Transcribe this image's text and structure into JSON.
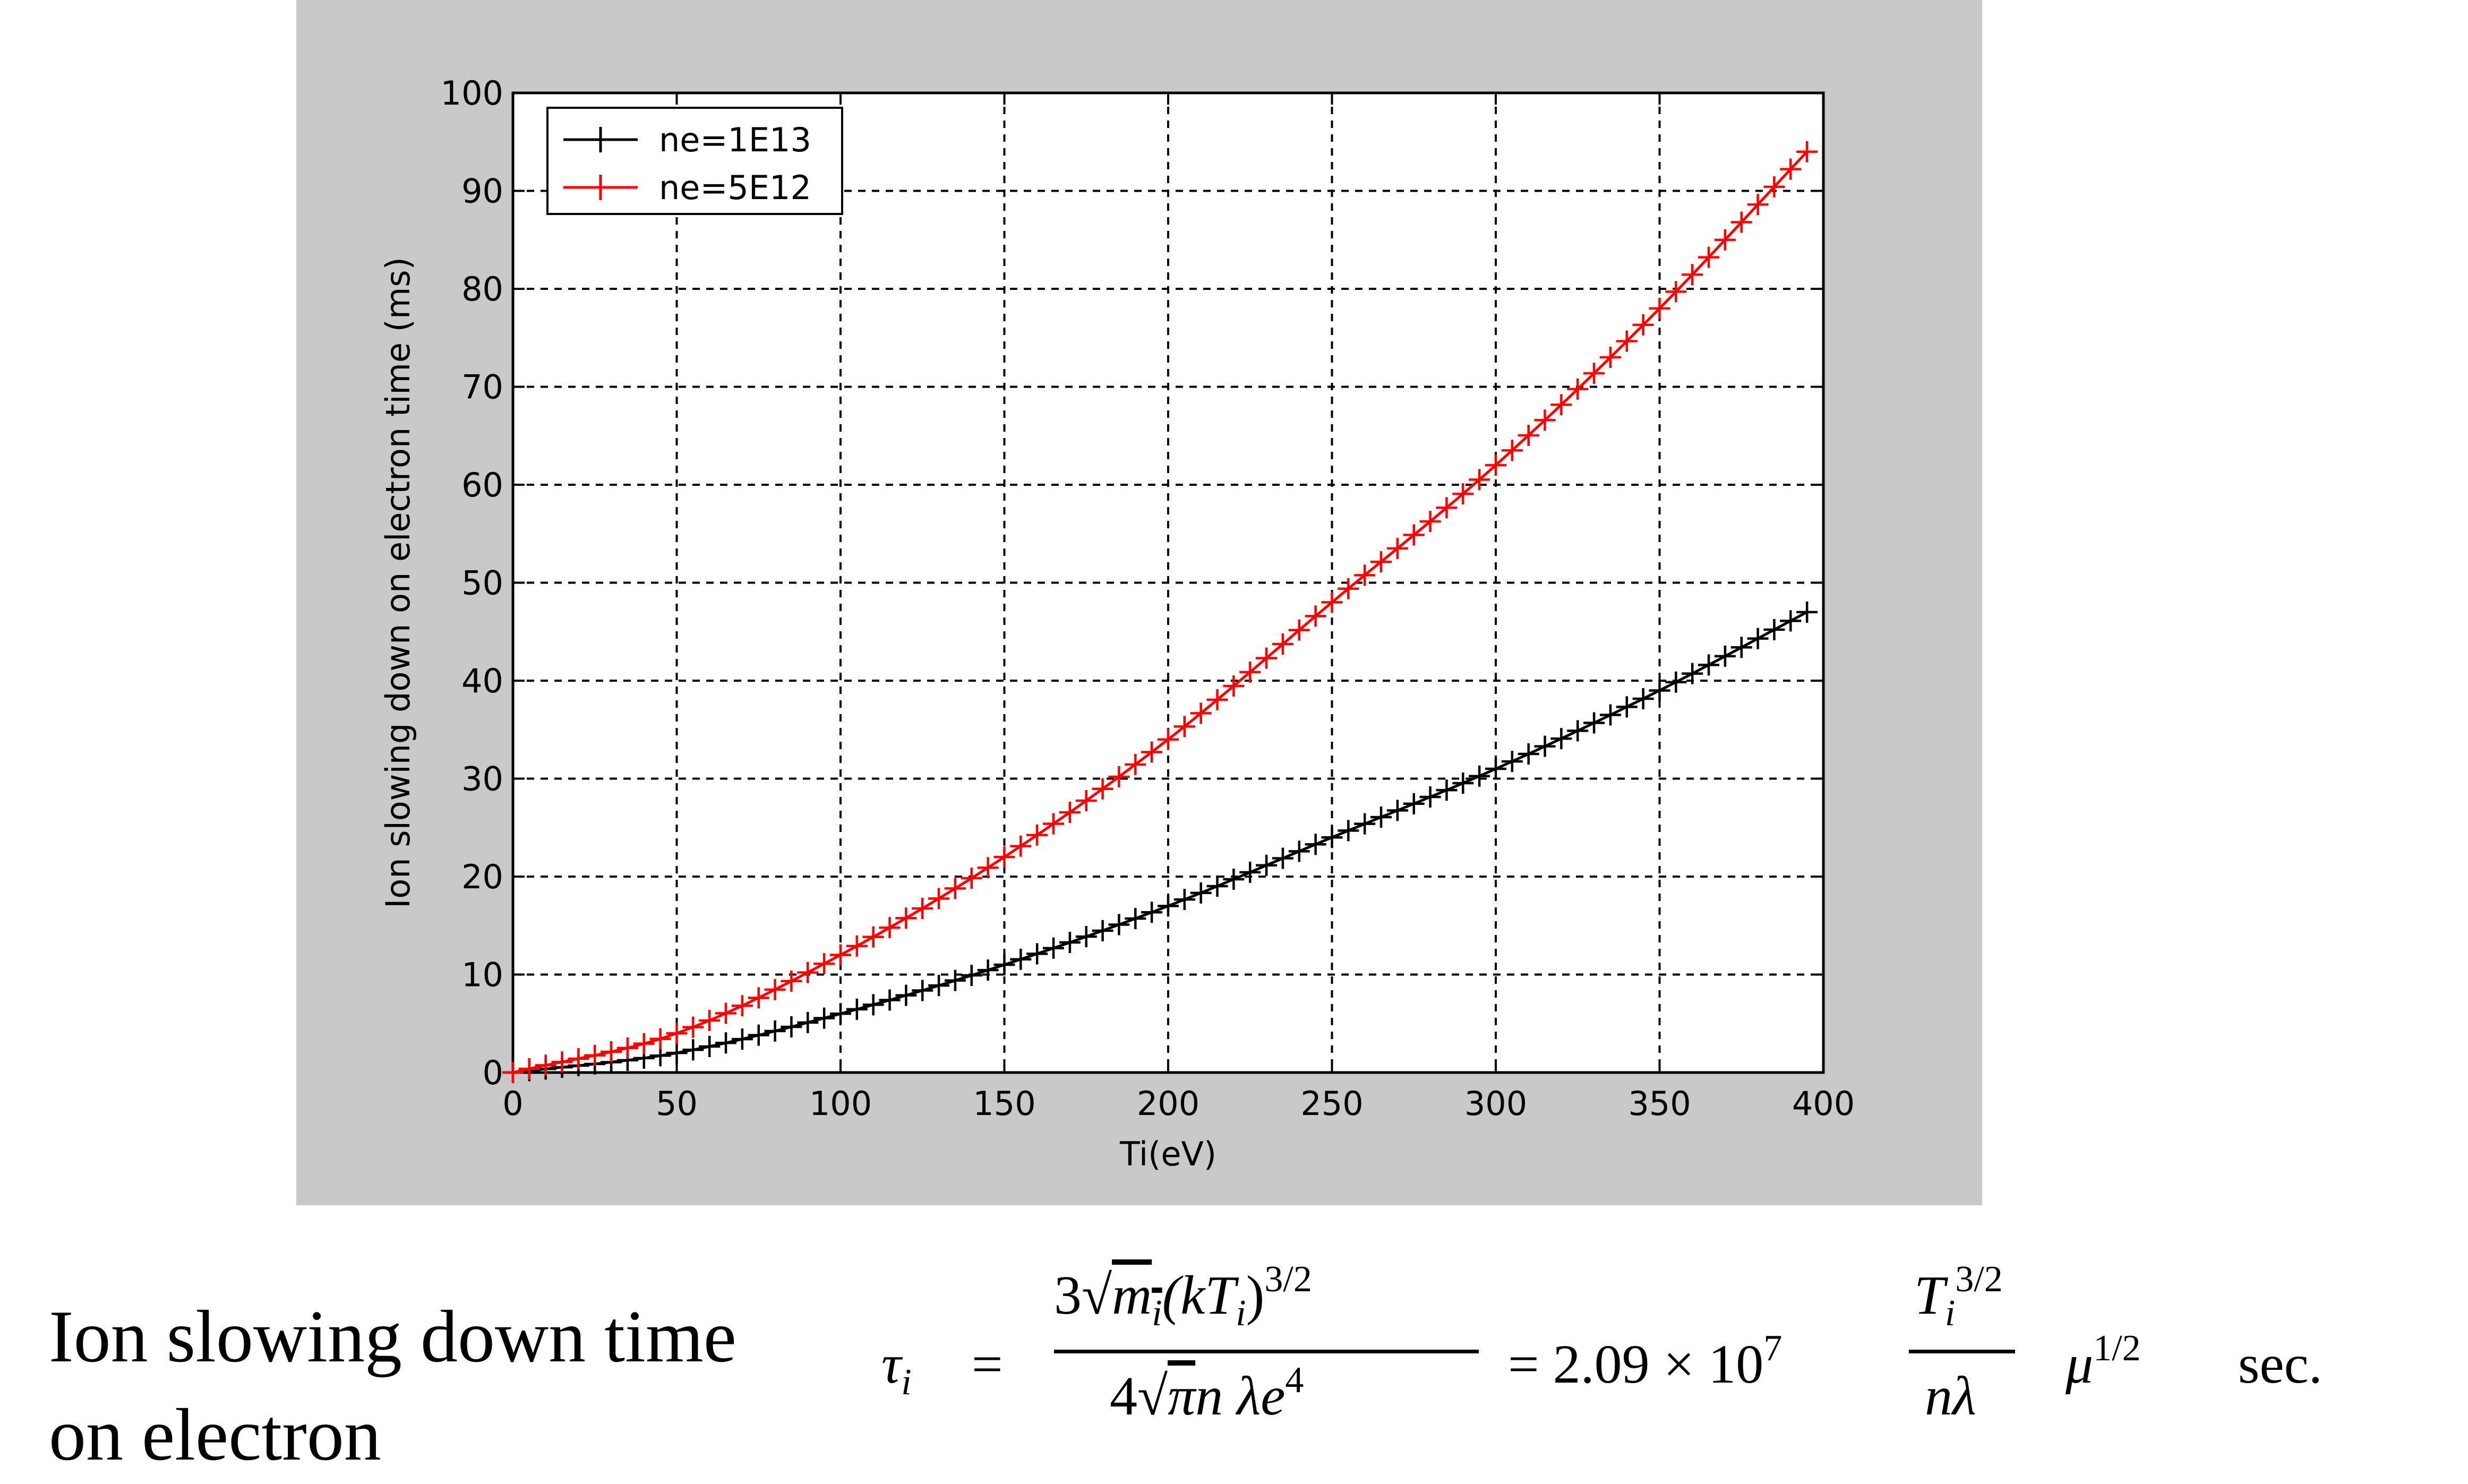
{
  "chart_data": {
    "type": "line",
    "title": "",
    "xlabel": "Ti(eV)",
    "ylabel": "Ion slowing down on electron time (ms)",
    "xlim": [
      0,
      400
    ],
    "ylim": [
      0,
      100
    ],
    "xticks": [
      0,
      50,
      100,
      150,
      200,
      250,
      300,
      350,
      400
    ],
    "yticks": [
      0,
      10,
      20,
      30,
      40,
      50,
      60,
      70,
      80,
      90,
      100
    ],
    "grid": true,
    "grid_style": "dashed",
    "legend_position": "top-left",
    "marker": "plus",
    "x": [
      0,
      50,
      100,
      150,
      200,
      250,
      300,
      350,
      395
    ],
    "series": [
      {
        "name": "ne=1E13",
        "color": "#000000",
        "values": [
          0,
          2,
          6,
          11,
          17,
          24,
          31,
          39,
          47
        ]
      },
      {
        "name": "ne=5E12",
        "color": "#ff0000",
        "values": [
          0,
          4,
          12,
          22,
          34,
          48,
          62,
          78,
          94
        ]
      }
    ]
  },
  "caption": {
    "line1": "Ion slowing down time",
    "line2": "on electron"
  },
  "formula": {
    "lhs_symbol": "τ",
    "lhs_sub": "i",
    "eq1": "=",
    "num_coeff": "3",
    "num_m": "m",
    "num_m_sub": "i",
    "num_paren": "(kT",
    "num_paren_sub": "i",
    "num_paren_close": ")",
    "num_exp": "3/2",
    "den_coeff": "4",
    "den_pi": "π",
    "den_rest": "n λe",
    "den_exp": "4",
    "eq2": "= 2.09 × 10",
    "eq2_exp": "7",
    "frac2_num": "T",
    "frac2_num_sub": "i",
    "frac2_num_exp": "3/2",
    "frac2_den": "nλ",
    "mu": "μ",
    "mu_exp": "1/2",
    "unit": "sec."
  }
}
